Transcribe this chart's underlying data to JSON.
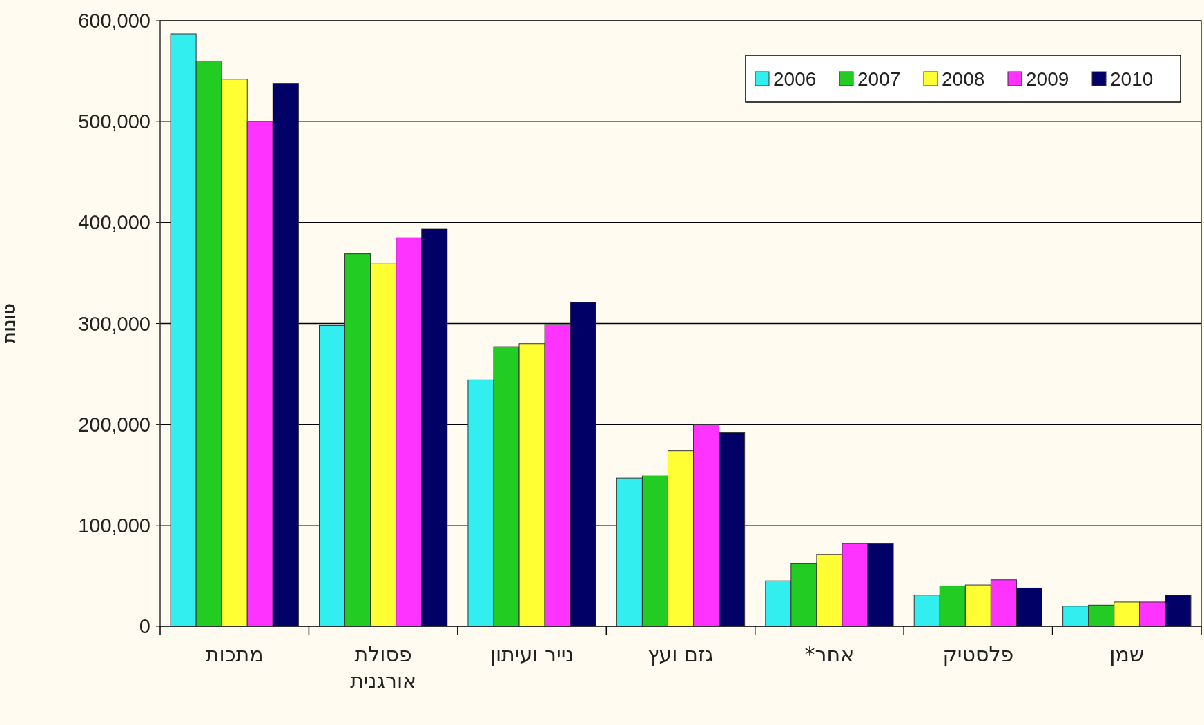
{
  "chart_data": {
    "type": "bar",
    "ylabel": "טונות",
    "categories": [
      "מתכות",
      "פסולת אורגנית",
      "נייר ועיתון",
      "גזם ועץ",
      "אחר*",
      "פלסטיק",
      "שמן"
    ],
    "series": [
      {
        "name": "2006",
        "color": "#33eeee",
        "values": [
          587000,
          298000,
          244000,
          147000,
          45000,
          31000,
          20000
        ]
      },
      {
        "name": "2007",
        "color": "#22cc22",
        "values": [
          560000,
          369000,
          277000,
          149000,
          62000,
          40000,
          21000
        ]
      },
      {
        "name": "2008",
        "color": "#ffff33",
        "values": [
          542000,
          359000,
          280000,
          174000,
          71000,
          41000,
          24000
        ]
      },
      {
        "name": "2009",
        "color": "#ff33ff",
        "values": [
          500000,
          385000,
          299000,
          200000,
          82000,
          46000,
          24000
        ]
      },
      {
        "name": "2010",
        "color": "#000066",
        "values": [
          538000,
          394000,
          321000,
          192000,
          82000,
          38000,
          31000
        ]
      }
    ],
    "ylim": [
      0,
      600000
    ],
    "yticks": [
      {
        "value": 0,
        "label": "0"
      },
      {
        "value": 100000,
        "label": "100,000"
      },
      {
        "value": 200000,
        "label": "200,000"
      },
      {
        "value": 300000,
        "label": "300,000"
      },
      {
        "value": 400000,
        "label": "400,000"
      },
      {
        "value": 500000,
        "label": "500,000"
      },
      {
        "value": 600000,
        "label": "600,000"
      }
    ],
    "grid": "y",
    "legend": "top right"
  }
}
